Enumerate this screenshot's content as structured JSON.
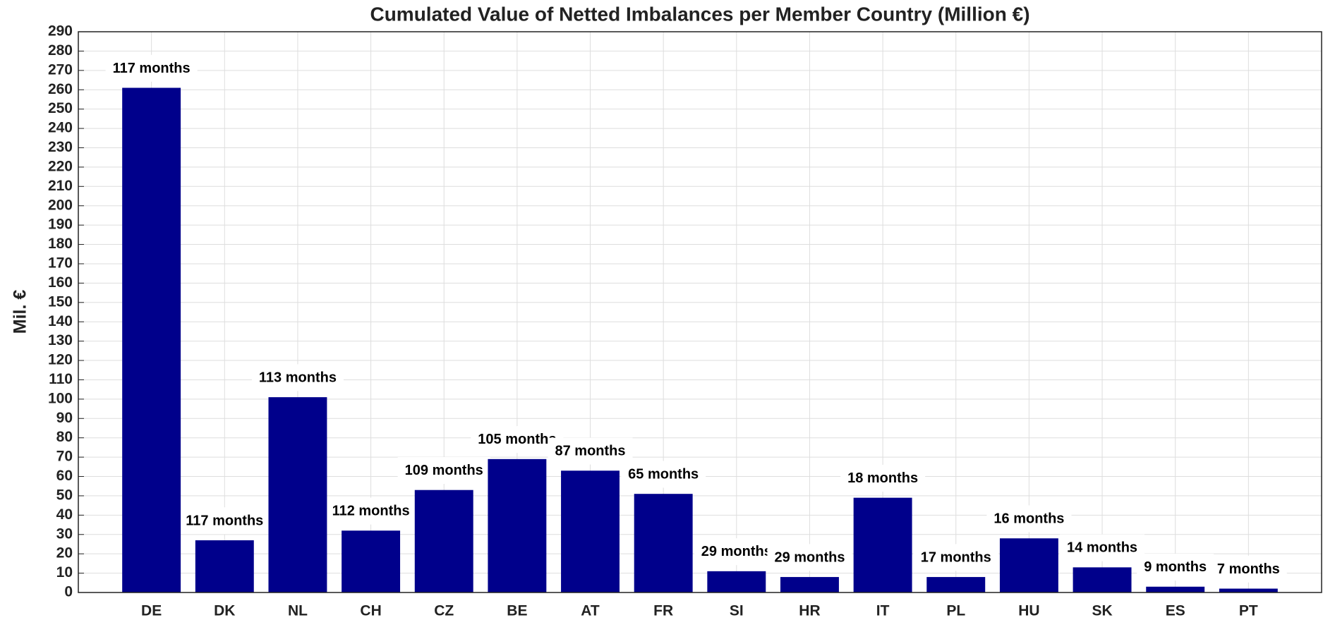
{
  "chart_data": {
    "type": "bar",
    "title": "Cumulated Value of Netted Imbalances per Member Country (Million €)",
    "ylabel": "Mil. €",
    "categories": [
      "DE",
      "DK",
      "NL",
      "CH",
      "CZ",
      "BE",
      "AT",
      "FR",
      "SI",
      "HR",
      "IT",
      "PL",
      "HU",
      "SK",
      "ES",
      "PT"
    ],
    "values": [
      261,
      27,
      101,
      32,
      53,
      69,
      63,
      51,
      11,
      8,
      49,
      8,
      28,
      13,
      3,
      2
    ],
    "annotations": [
      "117 months",
      "117 months",
      "113 months",
      "112 months",
      "109 months",
      "105 months",
      "87 months",
      "65 months",
      "29 months",
      "29 months",
      "18 months",
      "17 months",
      "16 months",
      "14 months",
      "9 months",
      "7 months"
    ],
    "color": "#00008b",
    "ylim": [
      0,
      290
    ],
    "yticks": [
      0,
      10,
      20,
      30,
      40,
      50,
      60,
      70,
      80,
      90,
      100,
      110,
      120,
      130,
      140,
      150,
      160,
      170,
      180,
      190,
      200,
      210,
      220,
      230,
      240,
      250,
      260,
      270,
      280,
      290
    ],
    "grid": true
  }
}
